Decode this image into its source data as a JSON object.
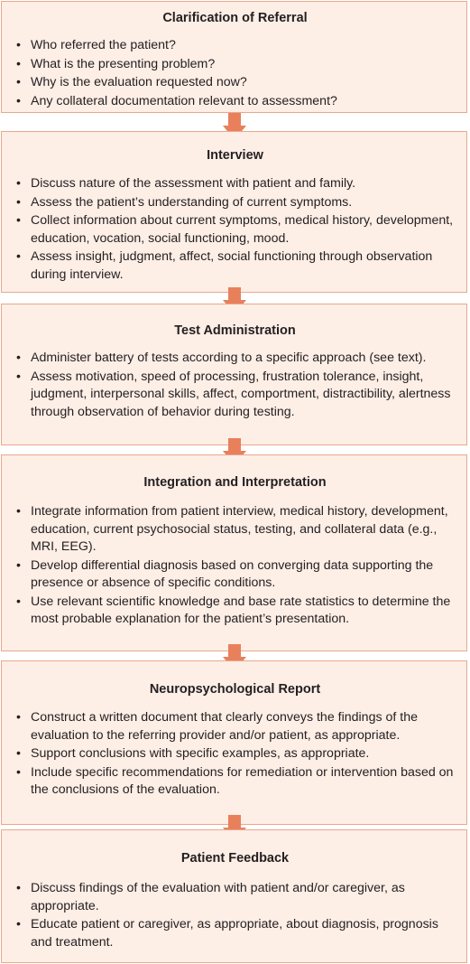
{
  "steps": [
    {
      "title": "Clarification of Referral",
      "items": [
        "Who referred the patient?",
        "What is the presenting problem?",
        "Why is the evaluation requested now?",
        "Any collateral documentation relevant to assessment?"
      ]
    },
    {
      "title": "Interview",
      "items": [
        "Discuss nature of the assessment with patient and family.",
        "Assess the patient’s understanding of current symptoms.",
        "Collect information about current symptoms, medical history, development, education, vocation, social functioning, mood.",
        "Assess insight, judgment, affect, social functioning through observation during interview."
      ]
    },
    {
      "title": "Test Administration",
      "items": [
        "Administer battery of tests according to a specific approach (see text).",
        "Assess motivation, speed of processing, frustration tolerance, insight, judgment, interpersonal skills, affect, comportment, distractibility, alertness through observation of behavior during testing."
      ]
    },
    {
      "title": "Integration and Interpretation",
      "items": [
        "Integrate information from patient interview, medical history, development, education, current psychosocial status, testing, and collateral data (e.g., MRI, EEG).",
        "Develop differential diagnosis based on converging data supporting the presence or absence of specific conditions.",
        "Use relevant scientific knowledge and base rate statistics to determine the most probable explanation for the patient’s presentation."
      ]
    },
    {
      "title": "Neuropsychological Report",
      "items": [
        "Construct a written document that clearly conveys the findings of the evaluation to the referring provider and/or patient, as appropriate.",
        "Support conclusions with specific examples, as appropriate.",
        "Include specific recommendations for remediation or intervention based on the conclusions of the evaluation."
      ]
    },
    {
      "title": "Patient Feedback",
      "items": [
        "Discuss findings of the evaluation with patient and/or caregiver, as appropriate.",
        "Educate patient or caregiver, as appropriate, about diagnosis, prognosis and treatment."
      ]
    }
  ],
  "bullet": "•",
  "colors": {
    "box_fill": "#fdeee6",
    "box_border": "#e8a98c",
    "arrow": "#e8805c",
    "text": "#231f20"
  }
}
